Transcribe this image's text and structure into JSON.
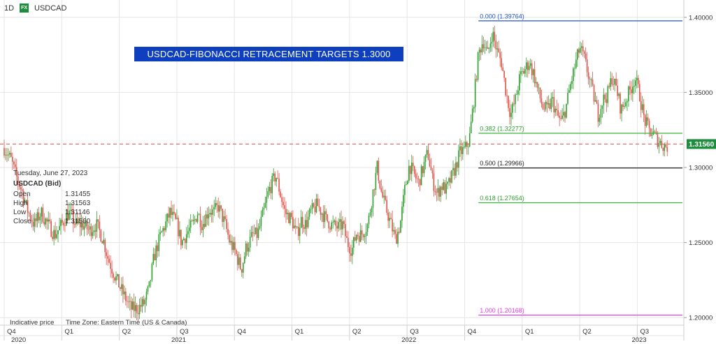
{
  "header": {
    "interval": "1D",
    "badge": "FX",
    "symbol": "USDCAD"
  },
  "banner": {
    "text": "USDCAD-FIBONACCI RETRACEMENT TARGETS 1.3000"
  },
  "info_panel": {
    "date": "Tuesday, June 27, 2023",
    "symbol_label": "USDCAD (Bid)",
    "rows": [
      {
        "label": "Open",
        "value": "1.31455"
      },
      {
        "label": "High",
        "value": "1.31563"
      },
      {
        "label": "Low",
        "value": "1.31146"
      },
      {
        "label": "Close",
        "value": "1.31560"
      }
    ]
  },
  "footer": {
    "indicative": "Indicative price",
    "timezone": "Time Zone: Eastern Time (US & Canada)"
  },
  "colors": {
    "up": "#2e9e2e",
    "down": "#e0534a",
    "fib_0": "#2255cc",
    "fib_382": "#3cb43c",
    "fib_500": "#222222",
    "fib_618": "#3cb43c",
    "fib_100": "#e040e0",
    "price_line": "#e05050",
    "price_tag": "#1e8e3e",
    "grid": "#e6e6e6"
  },
  "chart_data": {
    "type": "candlestick",
    "title": "USDCAD-FIBONACCI RETRACEMENT TARGETS 1.3000",
    "ylim": [
      1.195,
      1.405
    ],
    "y_ticks": [
      "1.20000",
      "1.25000",
      "1.30000",
      "1.35000",
      "1.40000"
    ],
    "x_ticks": [
      {
        "label": "Q4",
        "t": 0.0
      },
      {
        "label": "Q1",
        "t": 0.25
      },
      {
        "label": "Q2",
        "t": 0.5
      },
      {
        "label": "Q3",
        "t": 0.75
      },
      {
        "label": "Q4",
        "t": 1.0
      },
      {
        "label": "Q1",
        "t": 1.25
      },
      {
        "label": "Q2",
        "t": 1.5
      },
      {
        "label": "Q3",
        "t": 1.75
      },
      {
        "label": "Q4",
        "t": 2.0
      },
      {
        "label": "Q1",
        "t": 2.25
      },
      {
        "label": "Q2",
        "t": 2.5
      },
      {
        "label": "Q3",
        "t": 2.75
      }
    ],
    "year_labels": [
      {
        "label": "2020",
        "t": 0.0
      },
      {
        "label": "2021",
        "t": 0.75
      },
      {
        "label": "2022",
        "t": 1.75
      },
      {
        "label": "2023",
        "t": 2.75
      }
    ],
    "x_range": [
      0.0,
      2.94
    ],
    "price_path": [
      [
        0.0,
        1.313
      ],
      [
        0.03,
        1.305
      ],
      [
        0.05,
        1.295
      ],
      [
        0.08,
        1.283
      ],
      [
        0.1,
        1.272
      ],
      [
        0.13,
        1.262
      ],
      [
        0.16,
        1.27
      ],
      [
        0.19,
        1.262
      ],
      [
        0.22,
        1.255
      ],
      [
        0.25,
        1.262
      ],
      [
        0.28,
        1.27
      ],
      [
        0.31,
        1.262
      ],
      [
        0.34,
        1.262
      ],
      [
        0.37,
        1.258
      ],
      [
        0.4,
        1.262
      ],
      [
        0.43,
        1.252
      ],
      [
        0.45,
        1.24
      ],
      [
        0.48,
        1.228
      ],
      [
        0.51,
        1.218
      ],
      [
        0.53,
        1.212
      ],
      [
        0.55,
        1.206
      ],
      [
        0.58,
        1.206
      ],
      [
        0.61,
        1.21
      ],
      [
        0.63,
        1.22
      ],
      [
        0.65,
        1.24
      ],
      [
        0.68,
        1.255
      ],
      [
        0.7,
        1.262
      ],
      [
        0.72,
        1.27
      ],
      [
        0.75,
        1.262
      ],
      [
        0.77,
        1.25
      ],
      [
        0.8,
        1.258
      ],
      [
        0.82,
        1.262
      ],
      [
        0.84,
        1.27
      ],
      [
        0.86,
        1.262
      ],
      [
        0.89,
        1.272
      ],
      [
        0.91,
        1.27
      ],
      [
        0.93,
        1.274
      ],
      [
        0.96,
        1.262
      ],
      [
        0.98,
        1.25
      ],
      [
        1.0,
        1.245
      ],
      [
        1.03,
        1.232
      ],
      [
        1.05,
        1.246
      ],
      [
        1.08,
        1.255
      ],
      [
        1.1,
        1.255
      ],
      [
        1.13,
        1.272
      ],
      [
        1.15,
        1.285
      ],
      [
        1.18,
        1.295
      ],
      [
        1.2,
        1.282
      ],
      [
        1.22,
        1.27
      ],
      [
        1.25,
        1.265
      ],
      [
        1.27,
        1.255
      ],
      [
        1.29,
        1.265
      ],
      [
        1.31,
        1.262
      ],
      [
        1.33,
        1.27
      ],
      [
        1.36,
        1.275
      ],
      [
        1.38,
        1.27
      ],
      [
        1.4,
        1.265
      ],
      [
        1.42,
        1.262
      ],
      [
        1.45,
        1.26
      ],
      [
        1.47,
        1.262
      ],
      [
        1.49,
        1.25
      ],
      [
        1.51,
        1.245
      ],
      [
        1.53,
        1.256
      ],
      [
        1.55,
        1.255
      ],
      [
        1.58,
        1.262
      ],
      [
        1.6,
        1.282
      ],
      [
        1.62,
        1.3
      ],
      [
        1.64,
        1.282
      ],
      [
        1.66,
        1.272
      ],
      [
        1.68,
        1.262
      ],
      [
        1.7,
        1.252
      ],
      [
        1.72,
        1.262
      ],
      [
        1.74,
        1.285
      ],
      [
        1.76,
        1.302
      ],
      [
        1.78,
        1.295
      ],
      [
        1.8,
        1.29
      ],
      [
        1.82,
        1.3
      ],
      [
        1.84,
        1.31
      ],
      [
        1.86,
        1.292
      ],
      [
        1.88,
        1.282
      ],
      [
        1.9,
        1.288
      ],
      [
        1.92,
        1.285
      ],
      [
        1.94,
        1.292
      ],
      [
        1.96,
        1.3
      ],
      [
        1.98,
        1.31
      ],
      [
        2.0,
        1.312
      ],
      [
        2.02,
        1.318
      ],
      [
        2.04,
        1.345
      ],
      [
        2.06,
        1.375
      ],
      [
        2.08,
        1.385
      ],
      [
        2.1,
        1.375
      ],
      [
        2.12,
        1.39
      ],
      [
        2.14,
        1.378
      ],
      [
        2.16,
        1.37
      ],
      [
        2.18,
        1.35
      ],
      [
        2.2,
        1.335
      ],
      [
        2.22,
        1.345
      ],
      [
        2.24,
        1.36
      ],
      [
        2.26,
        1.365
      ],
      [
        2.28,
        1.37
      ],
      [
        2.3,
        1.362
      ],
      [
        2.32,
        1.35
      ],
      [
        2.34,
        1.34
      ],
      [
        2.36,
        1.338
      ],
      [
        2.38,
        1.345
      ],
      [
        2.4,
        1.335
      ],
      [
        2.42,
        1.33
      ],
      [
        2.44,
        1.34
      ],
      [
        2.46,
        1.355
      ],
      [
        2.48,
        1.368
      ],
      [
        2.5,
        1.38
      ],
      [
        2.52,
        1.372
      ],
      [
        2.54,
        1.36
      ],
      [
        2.56,
        1.348
      ],
      [
        2.58,
        1.335
      ],
      [
        2.6,
        1.345
      ],
      [
        2.62,
        1.348
      ],
      [
        2.64,
        1.36
      ],
      [
        2.66,
        1.352
      ],
      [
        2.68,
        1.338
      ],
      [
        2.7,
        1.345
      ],
      [
        2.72,
        1.352
      ],
      [
        2.74,
        1.36
      ],
      [
        2.76,
        1.348
      ],
      [
        2.78,
        1.332
      ],
      [
        2.8,
        1.325
      ],
      [
        2.82,
        1.322
      ],
      [
        2.84,
        1.318
      ],
      [
        2.86,
        1.315
      ],
      [
        2.88,
        1.314
      ]
    ],
    "fib_levels": [
      {
        "label": "0.000 (1.39764)",
        "value": 1.39764,
        "color": "#2255cc"
      },
      {
        "label": "0.382 (1.32277)",
        "value": 1.32277,
        "color": "#3cb43c"
      },
      {
        "label": "0.500 (1.29966)",
        "value": 1.29966,
        "color": "#222222"
      },
      {
        "label": "0.618 (1.27654)",
        "value": 1.27654,
        "color": "#3cb43c"
      },
      {
        "label": "1.000 (1.20168)",
        "value": 1.20168,
        "color": "#e040e0"
      }
    ],
    "fib_x_start": 2.06,
    "current_price": {
      "value": 1.3156,
      "label": "1.31560"
    }
  }
}
